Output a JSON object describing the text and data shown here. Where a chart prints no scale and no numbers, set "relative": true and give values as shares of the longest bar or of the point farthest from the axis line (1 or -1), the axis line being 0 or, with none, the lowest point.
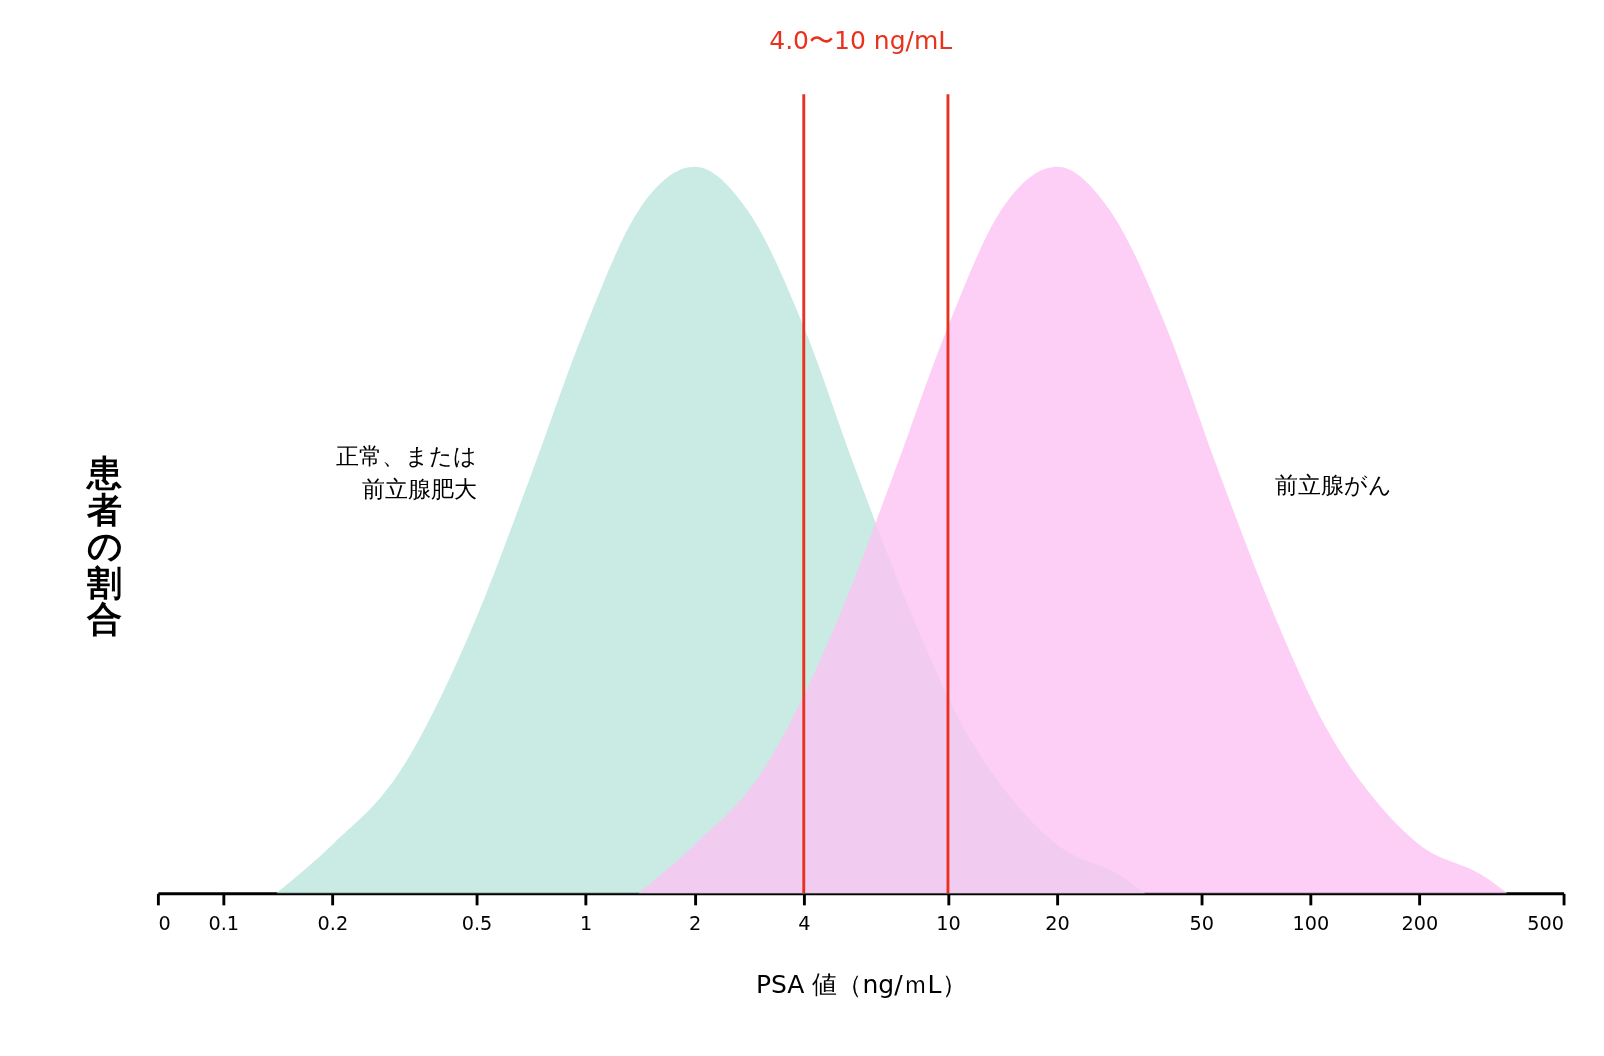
{
  "chart_data": {
    "type": "area",
    "title": "4.0〜10 ng/mL",
    "xlabel": "PSA 値（ng/ｍL）",
    "ylabel": "患者の割合",
    "relative": true,
    "log": "x",
    "xlim": [
      0.066,
      500
    ],
    "xticks": [
      {
        "value": 0.066,
        "label": "0"
      },
      0.1,
      0.2,
      0.5,
      1,
      2,
      4,
      10,
      20,
      50,
      100,
      200,
      500
    ],
    "series": [
      {
        "name": "正常、または前立腺肥大",
        "color": "#bce6dd",
        "x": [
          0.14,
          0.2,
          0.3,
          0.5,
          0.7,
          1,
          1.4,
          2,
          2.8,
          4,
          5.5,
          8,
          11,
          15,
          20,
          30,
          35
        ],
        "values": [
          0,
          0.067,
          0.16,
          0.38,
          0.57,
          0.78,
          0.94,
          1,
          0.94,
          0.78,
          0.59,
          0.38,
          0.23,
          0.13,
          0.067,
          0.024,
          0
        ]
      },
      {
        "name": "前立腺がん",
        "color": "#fcc3f4",
        "x": [
          1.4,
          2,
          3,
          5,
          7,
          10,
          14,
          20,
          28,
          40,
          55,
          80,
          110,
          150,
          200,
          300,
          350
        ],
        "values": [
          0,
          0.067,
          0.16,
          0.38,
          0.57,
          0.78,
          0.94,
          1,
          0.94,
          0.78,
          0.59,
          0.38,
          0.23,
          0.13,
          0.067,
          0.024,
          0
        ]
      }
    ],
    "ref_lines": [
      {
        "axis": "x",
        "value": 4,
        "color": "#e8321e"
      },
      {
        "axis": "x",
        "value": 10,
        "color": "#e8321e"
      }
    ],
    "grid": false
  }
}
